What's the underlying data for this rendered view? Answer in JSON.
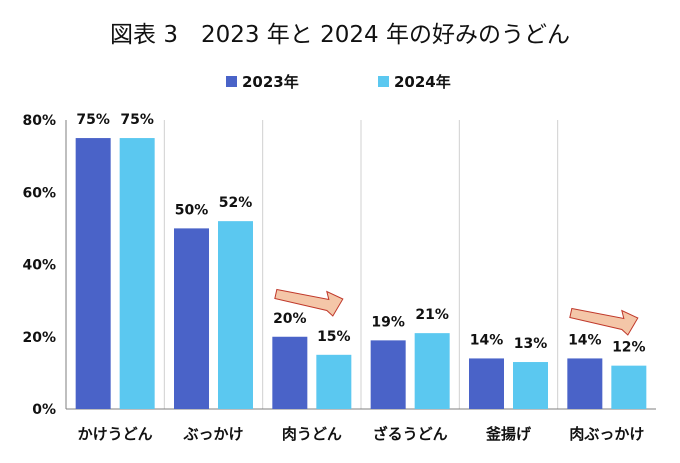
{
  "chart_data": {
    "type": "bar",
    "title": "図表 3　2023 年と 2024 年の好みのうどん",
    "categories": [
      "かけうどん",
      "ぶっかけ",
      "肉うどん",
      "ざるうどん",
      "釜揚げ",
      "肉ぶっかけ"
    ],
    "series": [
      {
        "name": "2023年",
        "values": [
          75,
          50,
          20,
          19,
          14,
          14
        ],
        "color": "#4a63c8"
      },
      {
        "name": "2024年",
        "values": [
          75,
          52,
          15,
          21,
          13,
          12
        ],
        "color": "#5bc8f0"
      }
    ],
    "data_labels": [
      [
        "75%",
        "50%",
        "20%",
        "19%",
        "14%",
        "14%"
      ],
      [
        "75%",
        "52%",
        "15%",
        "21%",
        "13%",
        "12%"
      ]
    ],
    "y_ticks": [
      "0%",
      "20%",
      "40%",
      "60%",
      "80%"
    ],
    "ylim": [
      0,
      80
    ],
    "legend_position": "top-center",
    "grid": "vertical-category-separators",
    "annotations": [
      {
        "type": "arrow",
        "category_index": 2,
        "color": "#f4c6a8"
      },
      {
        "type": "arrow",
        "category_index": 5,
        "color": "#f4c6a8"
      }
    ]
  }
}
